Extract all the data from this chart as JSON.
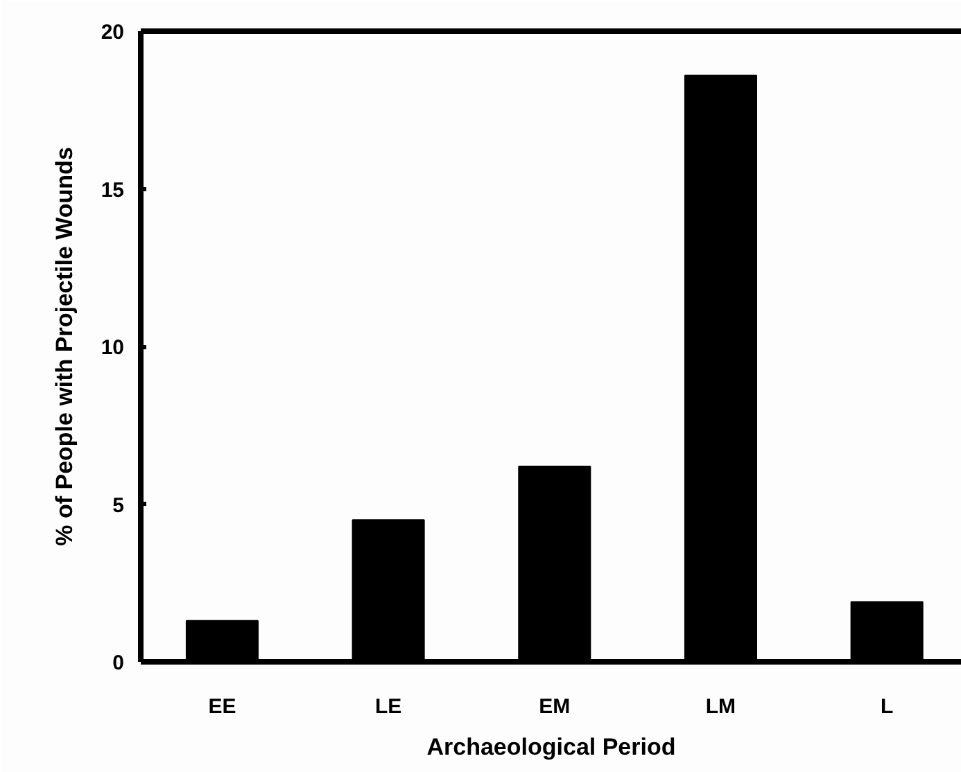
{
  "chart_data": {
    "type": "bar",
    "xlabel": "Archaeological Period",
    "ylabel": "% of People with Projectile Wounds",
    "categories": [
      "EE",
      "LE",
      "EM",
      "LM",
      "L"
    ],
    "values": [
      1.3,
      4.5,
      6.2,
      18.6,
      1.9
    ],
    "color": "#000000",
    "ylim": [
      0,
      20
    ],
    "yticks": [
      0,
      5,
      10,
      15,
      20
    ],
    "grid": false
  }
}
